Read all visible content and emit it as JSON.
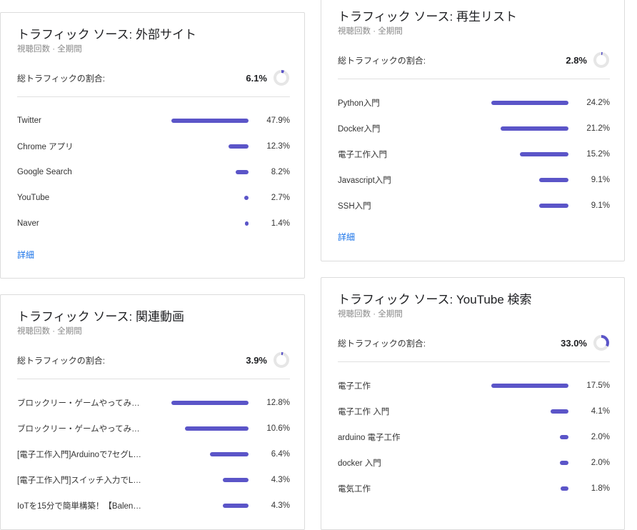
{
  "cards": [
    {
      "title": "トラフィック ソース: 外部サイト",
      "subtitle": "視聴回数 · 全期間",
      "total_label": "総トラフィックの割合:",
      "total_value": "6.1%",
      "total_fraction": 0.061,
      "details_label": "詳細",
      "rows": [
        {
          "label": "Twitter",
          "value": "47.9%",
          "num": 47.9
        },
        {
          "label": "Chrome アプリ",
          "value": "12.3%",
          "num": 12.3
        },
        {
          "label": "Google Search",
          "value": "8.2%",
          "num": 8.2
        },
        {
          "label": "YouTube",
          "value": "2.7%",
          "num": 2.7
        },
        {
          "label": "Naver",
          "value": "1.4%",
          "num": 1.4
        }
      ]
    },
    {
      "title": "トラフィック ソース: 再生リスト",
      "subtitle": "視聴回数 · 全期間",
      "total_label": "総トラフィックの割合:",
      "total_value": "2.8%",
      "total_fraction": 0.028,
      "details_label": "詳細",
      "rows": [
        {
          "label": "Python入門",
          "value": "24.2%",
          "num": 24.2
        },
        {
          "label": "Docker入門",
          "value": "21.2%",
          "num": 21.2
        },
        {
          "label": "電子工作入門",
          "value": "15.2%",
          "num": 15.2
        },
        {
          "label": "Javascript入門",
          "value": "9.1%",
          "num": 9.1
        },
        {
          "label": "SSH入門",
          "value": "9.1%",
          "num": 9.1
        }
      ]
    },
    {
      "title": "トラフィック ソース: 関連動画",
      "subtitle": "視聴回数 · 全期間",
      "total_label": "総トラフィックの割合:",
      "total_value": "3.9%",
      "total_fraction": 0.039,
      "rows": [
        {
          "label": "ブロックリー・ゲームやってみ…",
          "value": "12.8%",
          "num": 12.8
        },
        {
          "label": "ブロックリー・ゲームやってみ…",
          "value": "10.6%",
          "num": 10.6
        },
        {
          "label": "[電子工作入門]Arduinoで7セグL…",
          "value": "6.4%",
          "num": 6.4
        },
        {
          "label": "[電子工作入門]スイッチ入力でLE…",
          "value": "4.3%",
          "num": 4.3
        },
        {
          "label": "IoTを15分で簡単構築！【Balena…",
          "value": "4.3%",
          "num": 4.3
        }
      ]
    },
    {
      "title": "トラフィック ソース: YouTube 検索",
      "subtitle": "視聴回数 · 全期間",
      "total_label": "総トラフィックの割合:",
      "total_value": "33.0%",
      "total_fraction": 0.33,
      "rows": [
        {
          "label": "電子工作",
          "value": "17.5%",
          "num": 17.5
        },
        {
          "label": "電子工作 入門",
          "value": "4.1%",
          "num": 4.1
        },
        {
          "label": "arduino 電子工作",
          "value": "2.0%",
          "num": 2.0
        },
        {
          "label": "docker 入門",
          "value": "2.0%",
          "num": 2.0
        },
        {
          "label": "電気工作",
          "value": "1.8%",
          "num": 1.8
        }
      ]
    }
  ],
  "colors": {
    "bar": "#5b55c8",
    "donut_track": "#e6e6e6",
    "link": "#1a73e8"
  }
}
